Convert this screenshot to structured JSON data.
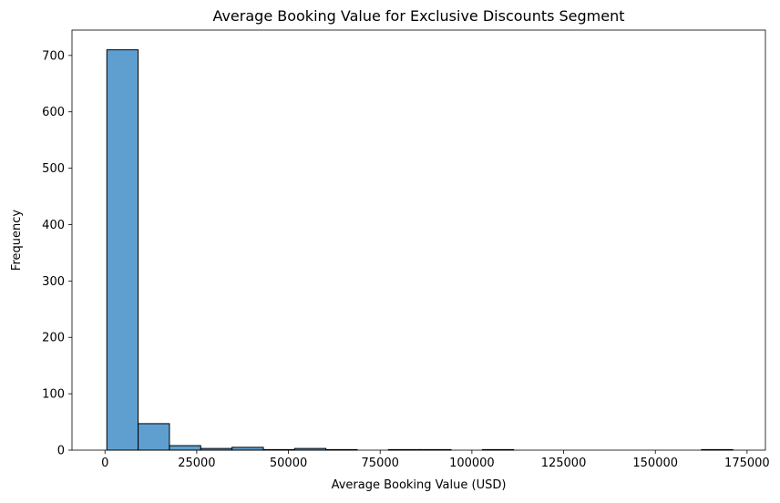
{
  "chart_data": {
    "type": "bar",
    "subtype": "histogram",
    "title": "Average Booking Value for Exclusive Discounts Segment",
    "xlabel": "Average Booking Value (USD)",
    "ylabel": "Frequency",
    "xlim": [
      -9000,
      180000
    ],
    "ylim": [
      0,
      745
    ],
    "x_ticks": [
      0,
      25000,
      50000,
      75000,
      100000,
      125000,
      150000,
      175000
    ],
    "x_tick_labels": [
      "0",
      "25000",
      "50000",
      "75000",
      "100000",
      "125000",
      "150000",
      "175000"
    ],
    "y_ticks": [
      0,
      100,
      200,
      300,
      400,
      500,
      600,
      700
    ],
    "y_tick_labels": [
      "0",
      "100",
      "200",
      "300",
      "400",
      "500",
      "600",
      "700"
    ],
    "bin_start": 500,
    "bin_width": 8530,
    "counts": [
      710,
      47,
      8,
      3,
      5,
      1,
      3,
      1,
      0,
      1,
      1,
      0,
      1,
      0,
      0,
      0,
      0,
      0,
      0,
      1
    ],
    "bar_color": "#5f9fcf",
    "edge_color": "#000000",
    "grid": false,
    "legend": "none"
  }
}
